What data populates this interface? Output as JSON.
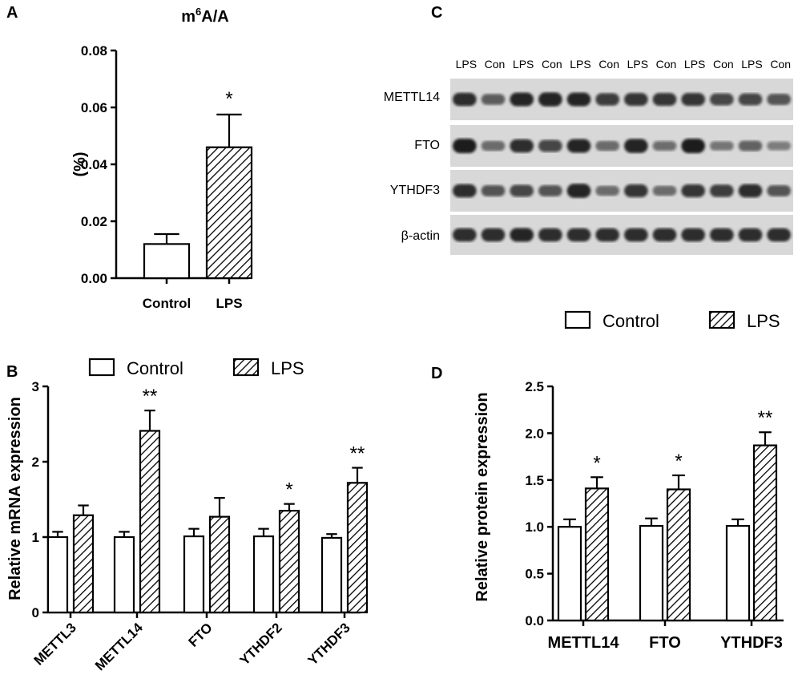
{
  "panels": {
    "a": {
      "letter": "A"
    },
    "b": {
      "letter": "B"
    },
    "c": {
      "letter": "C"
    },
    "d": {
      "letter": "D"
    }
  },
  "colors": {
    "bar_fill": "#ffffff",
    "stroke": "#000000",
    "hatch": "#000000",
    "blot_bg": "#d8d8d8",
    "band": "#1a1a1a"
  },
  "chart_data": [
    {
      "id": "A",
      "type": "bar",
      "title_main": "m",
      "title_sup": "6",
      "title_rest": "A/A",
      "ylabel": "(%)",
      "xlabel": "",
      "ylim": [
        0,
        0.08
      ],
      "yticks": [
        "0.00",
        "0.02",
        "0.04",
        "0.06",
        "0.08"
      ],
      "ytick_values": [
        0,
        0.02,
        0.04,
        0.06,
        0.08
      ],
      "categories": [
        "Control",
        "LPS"
      ],
      "values": [
        0.012,
        0.046
      ],
      "errors": [
        0.0035,
        0.0115
      ],
      "patterns": [
        "open",
        "hatched"
      ],
      "significance": [
        "",
        "*"
      ],
      "grid": false
    },
    {
      "id": "B",
      "type": "bar",
      "ylabel": "Relative mRNA expression",
      "xlabel": "",
      "ylim": [
        0,
        3
      ],
      "yticks": [
        "0",
        "1",
        "2",
        "3"
      ],
      "ytick_values": [
        0,
        1,
        2,
        3
      ],
      "categories": [
        "METTL3",
        "METTL14",
        "FTO",
        "YTHDF2",
        "YTHDF3"
      ],
      "series": [
        {
          "name": "Control",
          "pattern": "open",
          "values": [
            1.0,
            1.0,
            1.01,
            1.01,
            0.99
          ],
          "errors": [
            0.07,
            0.07,
            0.1,
            0.1,
            0.05
          ],
          "significance": [
            "",
            "",
            "",
            "",
            ""
          ]
        },
        {
          "name": "LPS",
          "pattern": "hatched",
          "values": [
            1.29,
            2.41,
            1.27,
            1.35,
            1.72
          ],
          "errors": [
            0.13,
            0.27,
            0.25,
            0.09,
            0.2
          ],
          "significance": [
            "",
            "**",
            "",
            "*",
            "**"
          ]
        }
      ],
      "legend": [
        "Control",
        "LPS"
      ],
      "legend_position": "top",
      "grid": false
    },
    {
      "id": "C",
      "type": "western-blot",
      "lanes": [
        "LPS",
        "Con",
        "LPS",
        "Con",
        "LPS",
        "Con",
        "LPS",
        "Con",
        "LPS",
        "Con",
        "LPS",
        "Con"
      ],
      "rows": [
        {
          "label": "METTL14",
          "band_intensity": [
            0.85,
            0.55,
            0.9,
            0.95,
            0.9,
            0.75,
            0.8,
            0.8,
            0.8,
            0.7,
            0.7,
            0.6
          ]
        },
        {
          "label": "FTO",
          "band_intensity": [
            1.0,
            0.45,
            0.85,
            0.7,
            0.9,
            0.45,
            0.95,
            0.4,
            1.0,
            0.35,
            0.5,
            0.3
          ]
        },
        {
          "label": "YTHDF3",
          "band_intensity": [
            0.85,
            0.6,
            0.7,
            0.6,
            0.95,
            0.45,
            0.8,
            0.45,
            0.8,
            0.75,
            0.85,
            0.6
          ]
        },
        {
          "label": "β-actin",
          "band_intensity": [
            0.85,
            0.85,
            0.9,
            0.85,
            0.85,
            0.85,
            0.85,
            0.85,
            0.85,
            0.85,
            0.85,
            0.85
          ]
        }
      ]
    },
    {
      "id": "D",
      "type": "bar",
      "ylabel": "Relative protein expression",
      "xlabel": "",
      "ylim": [
        0,
        2.5
      ],
      "yticks": [
        "0.0",
        "0.5",
        "1.0",
        "1.5",
        "2.0",
        "2.5"
      ],
      "ytick_values": [
        0,
        0.5,
        1.0,
        1.5,
        2.0,
        2.5
      ],
      "categories": [
        "METTL14",
        "FTO",
        "YTHDF3"
      ],
      "series": [
        {
          "name": "Control",
          "pattern": "open",
          "values": [
            1.0,
            1.01,
            1.01
          ],
          "errors": [
            0.08,
            0.08,
            0.07
          ],
          "significance": [
            "",
            "",
            ""
          ]
        },
        {
          "name": "LPS",
          "pattern": "hatched",
          "values": [
            1.41,
            1.4,
            1.87
          ],
          "errors": [
            0.12,
            0.15,
            0.14
          ],
          "significance": [
            "*",
            "*",
            "**"
          ]
        }
      ],
      "legend": [
        "Control",
        "LPS"
      ],
      "legend_position": "top",
      "grid": false
    }
  ]
}
